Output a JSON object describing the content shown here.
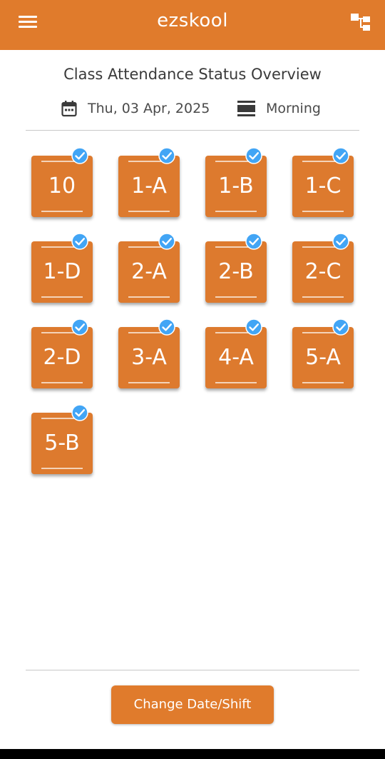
{
  "app": {
    "title": "ezskool",
    "header_color": "#E07B2C",
    "icons": {
      "menu": "hamburger-menu-icon",
      "hierarchy": "hierarchy-icon"
    }
  },
  "overview": {
    "title": "Class Attendance Status Overview",
    "date": "Thu, 03 Apr, 2025",
    "shift": "Morning",
    "icons": {
      "date": "calendar-icon",
      "shift": "shift-icon"
    }
  },
  "classes": [
    {
      "label": "10",
      "status": "completed"
    },
    {
      "label": "1-A",
      "status": "completed"
    },
    {
      "label": "1-B",
      "status": "completed"
    },
    {
      "label": "1-C",
      "status": "completed"
    },
    {
      "label": "1-D",
      "status": "completed"
    },
    {
      "label": "2-A",
      "status": "completed"
    },
    {
      "label": "2-B",
      "status": "completed"
    },
    {
      "label": "2-C",
      "status": "completed"
    },
    {
      "label": "2-D",
      "status": "completed"
    },
    {
      "label": "3-A",
      "status": "completed"
    },
    {
      "label": "4-A",
      "status": "completed"
    },
    {
      "label": "5-A",
      "status": "completed"
    },
    {
      "label": "5-B",
      "status": "completed"
    }
  ],
  "colors": {
    "tile": "#DD7A2E",
    "check": "#42A5F5"
  },
  "actions": {
    "change_label": "Change Date/Shift"
  }
}
